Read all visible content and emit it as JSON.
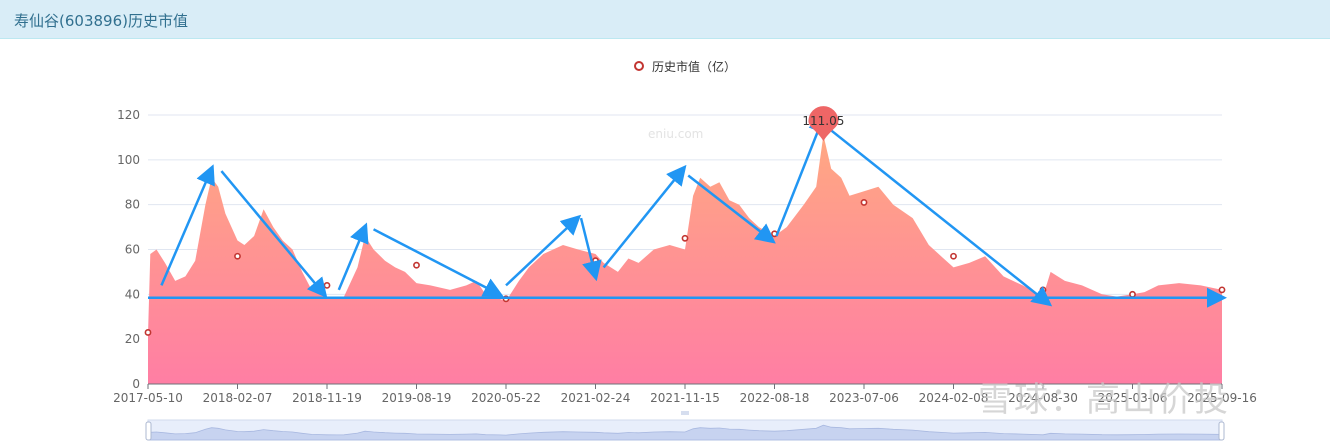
{
  "header": {
    "title": "寿仙谷(603896)历史市值"
  },
  "watermarks": {
    "site": "eniu.com",
    "brand": "雪球：高山价投"
  },
  "colors": {
    "area_top": "#ffa882",
    "area_bottom": "#ff7ea4",
    "marker": "#c23531",
    "pin": "#ee6666",
    "arrow": "#2196f3",
    "grid": "#e0e6f1",
    "slider": "#d2dbee"
  },
  "chart_data": {
    "type": "area",
    "title": "",
    "legend": {
      "label": "历史市值（亿）",
      "position": "top-center"
    },
    "ylim": [
      0,
      120
    ],
    "yticks": [
      0,
      20,
      40,
      60,
      80,
      100,
      120
    ],
    "xtick_labels": [
      "2017-05-10",
      "2018-02-07",
      "2018-11-19",
      "2019-08-19",
      "2020-05-22",
      "2021-02-24",
      "2021-11-15",
      "2022-08-18",
      "2023-07-06",
      "2024-02-08",
      "2024-08-30",
      "2025-03-06",
      "2025-09-16"
    ],
    "series": [
      {
        "values_by_date": [
          [
            "2017-05-10",
            22
          ],
          [
            "2017-05-17",
            58
          ],
          [
            "2017-06-05",
            60
          ],
          [
            "2017-07-01",
            54
          ],
          [
            "2017-08-01",
            46
          ],
          [
            "2017-09-01",
            48
          ],
          [
            "2017-10-01",
            55
          ],
          [
            "2017-11-01",
            80
          ],
          [
            "2017-11-20",
            92
          ],
          [
            "2017-12-10",
            88
          ],
          [
            "2018-01-01",
            76
          ],
          [
            "2018-02-07",
            64
          ],
          [
            "2018-03-01",
            62
          ],
          [
            "2018-04-01",
            66
          ],
          [
            "2018-05-01",
            78
          ],
          [
            "2018-06-01",
            70
          ],
          [
            "2018-07-01",
            64
          ],
          [
            "2018-08-01",
            60
          ],
          [
            "2018-09-01",
            50
          ],
          [
            "2018-10-01",
            42
          ],
          [
            "2018-11-19",
            39
          ],
          [
            "2018-12-20",
            38
          ],
          [
            "2019-01-10",
            39
          ],
          [
            "2019-02-20",
            52
          ],
          [
            "2019-03-15",
            66
          ],
          [
            "2019-04-10",
            60
          ],
          [
            "2019-05-15",
            55
          ],
          [
            "2019-06-15",
            52
          ],
          [
            "2019-07-15",
            50
          ],
          [
            "2019-08-19",
            45
          ],
          [
            "2019-10-01",
            44
          ],
          [
            "2019-12-01",
            42
          ],
          [
            "2020-01-20",
            44
          ],
          [
            "2020-02-20",
            46
          ],
          [
            "2020-03-20",
            40
          ],
          [
            "2020-05-01",
            38
          ],
          [
            "2020-05-22",
            37
          ],
          [
            "2020-07-01",
            46
          ],
          [
            "2020-08-01",
            52
          ],
          [
            "2020-09-15",
            58
          ],
          [
            "2020-11-15",
            62
          ],
          [
            "2021-01-01",
            60
          ],
          [
            "2021-02-24",
            58
          ],
          [
            "2021-03-20",
            54
          ],
          [
            "2021-05-01",
            50
          ],
          [
            "2021-06-01",
            56
          ],
          [
            "2021-07-01",
            54
          ],
          [
            "2021-08-15",
            60
          ],
          [
            "2021-10-01",
            62
          ],
          [
            "2021-11-15",
            60
          ],
          [
            "2021-12-10",
            84
          ],
          [
            "2022-01-01",
            92
          ],
          [
            "2022-02-01",
            88
          ],
          [
            "2022-03-01",
            90
          ],
          [
            "2022-04-01",
            82
          ],
          [
            "2022-05-01",
            80
          ],
          [
            "2022-06-01",
            74
          ],
          [
            "2022-07-01",
            70
          ],
          [
            "2022-08-18",
            66
          ],
          [
            "2022-10-01",
            70
          ],
          [
            "2022-12-01",
            80
          ],
          [
            "2023-01-15",
            88
          ],
          [
            "2023-02-10",
            111.05
          ],
          [
            "2023-03-10",
            96
          ],
          [
            "2023-04-15",
            92
          ],
          [
            "2023-05-15",
            84
          ],
          [
            "2023-07-06",
            86
          ],
          [
            "2023-08-10",
            88
          ],
          [
            "2023-09-15",
            80
          ],
          [
            "2023-11-01",
            74
          ],
          [
            "2023-12-10",
            62
          ],
          [
            "2024-01-15",
            56
          ],
          [
            "2024-02-08",
            52
          ],
          [
            "2024-03-15",
            54
          ],
          [
            "2024-04-20",
            57
          ],
          [
            "2024-06-01",
            48
          ],
          [
            "2024-07-15",
            44
          ],
          [
            "2024-08-30",
            39
          ],
          [
            "2024-09-15",
            50
          ],
          [
            "2024-10-15",
            46
          ],
          [
            "2024-11-20",
            44
          ],
          [
            "2025-01-01",
            40
          ],
          [
            "2025-02-01",
            39
          ],
          [
            "2025-03-06",
            40
          ],
          [
            "2025-04-01",
            41
          ],
          [
            "2025-05-01",
            44
          ],
          [
            "2025-06-15",
            45
          ],
          [
            "2025-08-01",
            44
          ],
          [
            "2025-09-16",
            42
          ],
          [
            "2025-10-20",
            40
          ]
        ]
      }
    ],
    "markers": [
      [
        "2017-05-10",
        23
      ],
      [
        "2018-02-07",
        57
      ],
      [
        "2018-11-19",
        44
      ],
      [
        "2019-08-19",
        53
      ],
      [
        "2020-05-22",
        38
      ],
      [
        "2021-02-24",
        55
      ],
      [
        "2021-11-15",
        65
      ],
      [
        "2022-08-18",
        67
      ],
      [
        "2023-07-06",
        81
      ],
      [
        "2024-02-08",
        57
      ],
      [
        "2024-08-30",
        42
      ],
      [
        "2025-03-06",
        40
      ],
      [
        "2025-09-16",
        42
      ]
    ],
    "max_point": {
      "date": "2023-02-10",
      "value": 111.05,
      "label": "111.05"
    },
    "arrows": [
      [
        [
          "2017-06-20",
          44
        ],
        [
          "2017-11-20",
          96
        ]
      ],
      [
        [
          "2017-12-20",
          95
        ],
        [
          "2018-11-10",
          40
        ]
      ],
      [
        [
          "2018-12-25",
          42
        ],
        [
          "2019-03-15",
          70
        ]
      ],
      [
        [
          "2019-04-10",
          69
        ],
        [
          "2020-05-01",
          40
        ]
      ],
      [
        [
          "2020-05-22",
          44
        ],
        [
          "2020-12-30",
          74
        ]
      ],
      [
        [
          "2021-01-10",
          74
        ],
        [
          "2021-02-24",
          48
        ]
      ],
      [
        [
          "2021-03-20",
          52
        ],
        [
          "2021-11-10",
          96
        ]
      ],
      [
        [
          "2021-11-25",
          93
        ],
        [
          "2022-08-10",
          64
        ]
      ],
      [
        [
          "2022-08-25",
          66
        ],
        [
          "2023-02-10",
          119
        ]
      ],
      [
        [
          "2023-03-01",
          114
        ],
        [
          "2024-09-10",
          36
        ]
      ],
      [
        [
          "2017-05-10",
          38.5
        ],
        [
          "2025-10-20",
          38.5
        ]
      ]
    ]
  }
}
